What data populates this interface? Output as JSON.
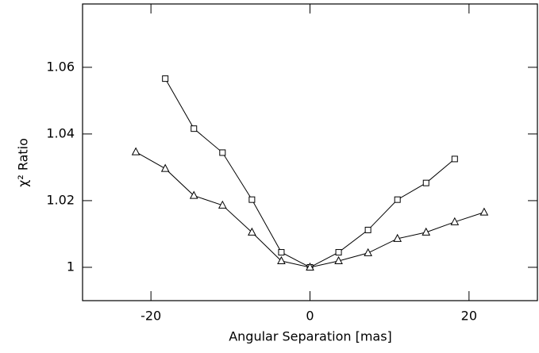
{
  "chart_data": {
    "type": "line",
    "x_label": "Angular Separation [mas]",
    "y_label": "χ² Ratio",
    "xlim": [
      -28.6,
      28.6
    ],
    "ylim": [
      0.99,
      1.079
    ],
    "xticks": [
      -20,
      0,
      20
    ],
    "yticks": [
      1,
      1.02,
      1.04,
      1.06
    ],
    "series": [
      {
        "marker": "square",
        "color": "#000000",
        "x": [
          -18.2,
          -14.6,
          -11,
          -7.3,
          -3.6,
          0,
          3.6,
          7.3,
          11,
          14.6,
          18.2
        ],
        "values": [
          1.0566,
          1.0416,
          1.0344,
          1.0203,
          1.0045,
          1,
          1.0045,
          1.0112,
          1.0203,
          1.0253,
          1.0325
        ]
      },
      {
        "marker": "triangle",
        "color": "#000000",
        "x": [
          -21.9,
          -18.2,
          -14.6,
          -11,
          -7.3,
          -3.6,
          0,
          3.6,
          7.3,
          11,
          14.6,
          18.2,
          21.9
        ],
        "values": [
          1.0346,
          1.0296,
          1.0215,
          1.0186,
          1.0105,
          1.0019,
          1,
          1.0019,
          1.0043,
          1.0086,
          1.0105,
          1.0136,
          1.0165
        ]
      }
    ]
  }
}
